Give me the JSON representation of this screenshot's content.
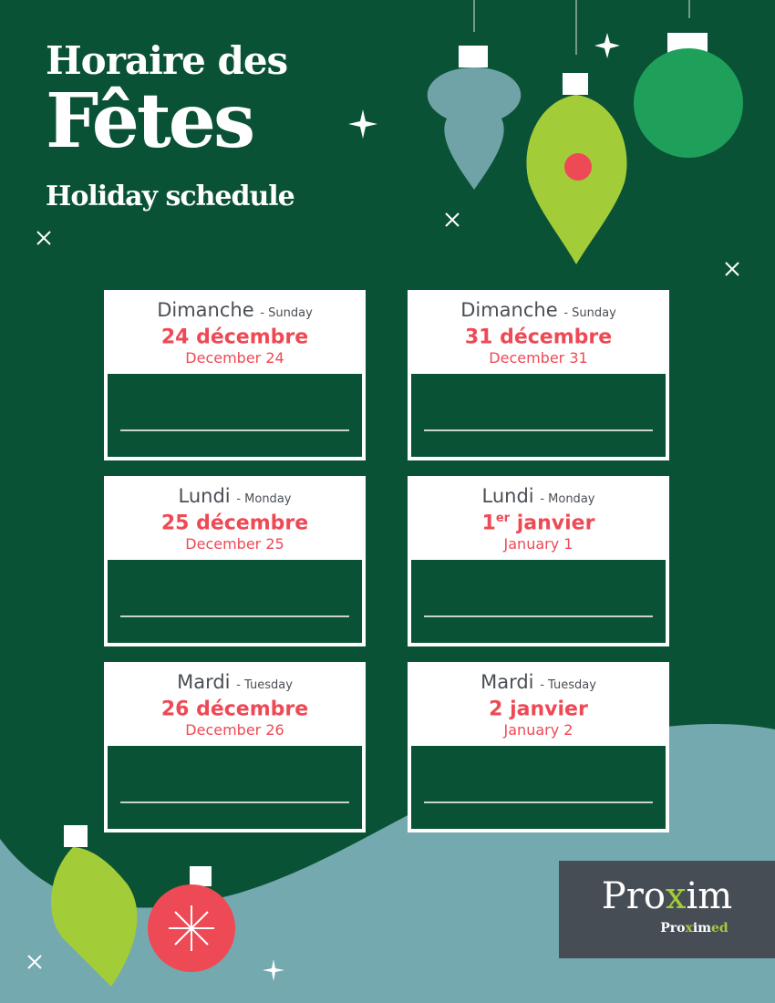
{
  "title": {
    "line1": "Horaire des",
    "line2": "Fêtes",
    "line3": "Holiday schedule"
  },
  "colors": {
    "background": "#0a5235",
    "accent": "#ee4a55",
    "wave": "#74a9b0",
    "logo_bg": "#474d55",
    "logo_green": "#a3cc39"
  },
  "cards": [
    {
      "day_fr": "Dimanche",
      "day_en": "- Sunday",
      "date_fr": "24 décembre",
      "sup": "",
      "date_fr_rest": "",
      "date_en": "December 24",
      "hours": ""
    },
    {
      "day_fr": "Dimanche",
      "day_en": "- Sunday",
      "date_fr": "31 décembre",
      "sup": "",
      "date_fr_rest": "",
      "date_en": "December 31",
      "hours": ""
    },
    {
      "day_fr": "Lundi",
      "day_en": "- Monday",
      "date_fr": "25 décembre",
      "sup": "",
      "date_fr_rest": "",
      "date_en": "December 25",
      "hours": ""
    },
    {
      "day_fr": "Lundi",
      "day_en": "- Monday",
      "date_fr": "1",
      "sup": "er",
      "date_fr_rest": " janvier",
      "date_en": "January 1",
      "hours": ""
    },
    {
      "day_fr": "Mardi",
      "day_en": "- Tuesday",
      "date_fr": "26 décembre",
      "sup": "",
      "date_fr_rest": "",
      "date_en": "December 26",
      "hours": ""
    },
    {
      "day_fr": "Mardi",
      "day_en": "- Tuesday",
      "date_fr": "2 janvier",
      "sup": "",
      "date_fr_rest": "",
      "date_en": "January 2",
      "hours": ""
    }
  ],
  "logo": {
    "main_a": "Pro",
    "main_x": "x",
    "main_b": "im",
    "sub_a": "Pro",
    "sub_x": "x",
    "sub_b": "im",
    "sub_c": "ed"
  }
}
